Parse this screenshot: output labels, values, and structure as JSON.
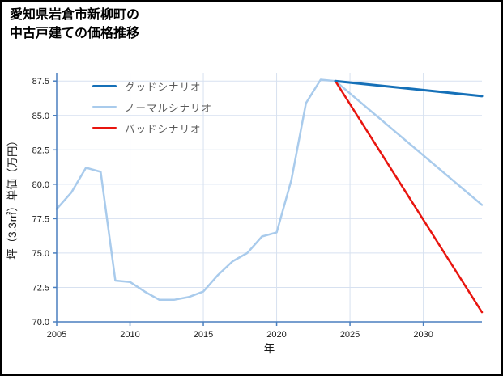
{
  "title": {
    "line1": "愛知県岩倉市新柳町の",
    "line2": "中古戸建ての価格推移"
  },
  "chart_data": {
    "type": "line",
    "title": "愛知県岩倉市新柳町の中古戸建ての価格推移",
    "xlabel": "年",
    "ylabel": "坪（3.3㎡）単価（万円）",
    "xlim": [
      2005,
      2034
    ],
    "ylim": [
      70,
      88.1
    ],
    "xticks": [
      2005,
      2010,
      2015,
      2020,
      2025,
      2030
    ],
    "yticks": [
      70.0,
      72.5,
      75.0,
      77.5,
      80.0,
      82.5,
      85.0,
      87.5
    ],
    "grid": true,
    "legend_position": "upper-left",
    "colors": {
      "axis": "#4a7fbf",
      "grid": "#d7e1f0",
      "tick_text": "#1a1a1a",
      "legend_text": "#595959",
      "good": "#1570b8",
      "normal": "#a9cbec",
      "bad": "#e8150f"
    },
    "series": [
      {
        "name": "グッドシナリオ",
        "color": "#1570b8",
        "width": 3,
        "z": 3,
        "x": [
          2024,
          2034
        ],
        "y": [
          87.5,
          86.4
        ]
      },
      {
        "name": "ノーマルシナリオ",
        "color": "#a9cbec",
        "width": 2.5,
        "z": 1,
        "x": [
          2005,
          2006,
          2007,
          2008,
          2009,
          2010,
          2011,
          2012,
          2013,
          2014,
          2015,
          2016,
          2017,
          2018,
          2019,
          2020,
          2021,
          2022,
          2023,
          2024,
          2034
        ],
        "y": [
          78.2,
          79.4,
          81.2,
          80.9,
          73.0,
          72.9,
          72.2,
          71.6,
          71.6,
          71.8,
          72.2,
          73.4,
          74.4,
          75.0,
          76.2,
          76.5,
          80.3,
          85.9,
          87.6,
          87.5,
          78.5
        ]
      },
      {
        "name": "バッドシナリオ",
        "color": "#e8150f",
        "width": 2.5,
        "z": 2,
        "x": [
          2024,
          2034
        ],
        "y": [
          87.5,
          70.7
        ]
      }
    ]
  }
}
